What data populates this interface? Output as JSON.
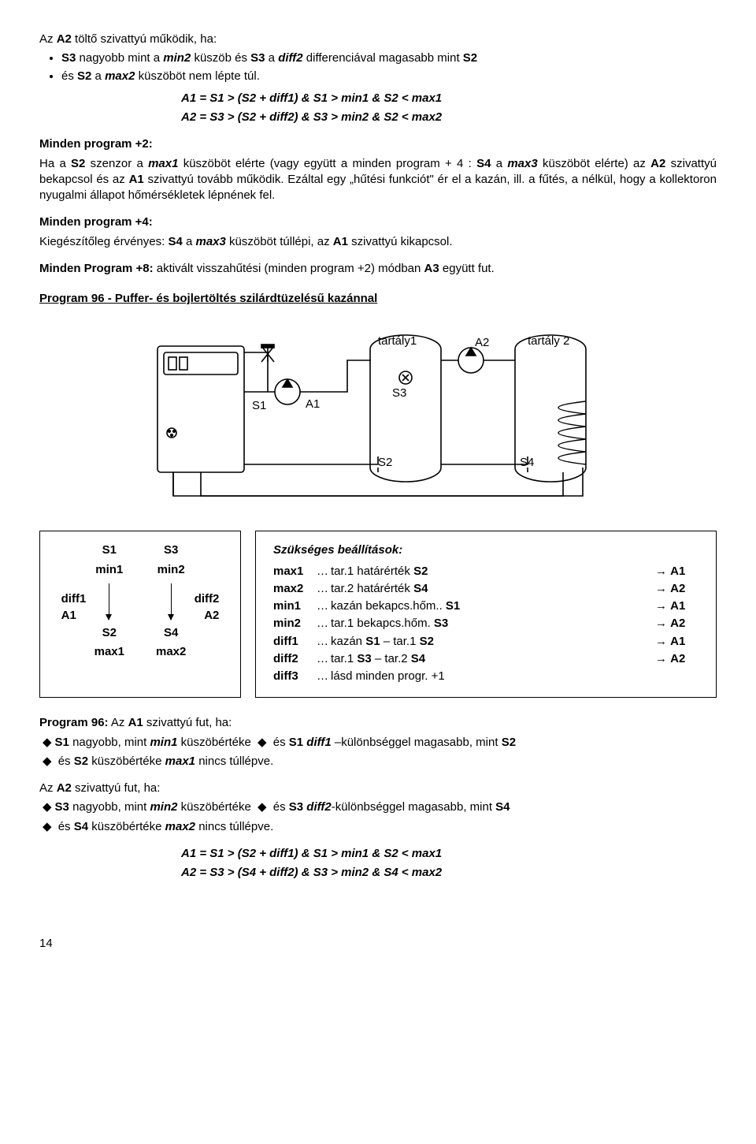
{
  "intro": {
    "l1_a": "Az ",
    "l1_b": "A2",
    "l1_c": " töltő szivattyú működik, ha:",
    "b1_a": "S3",
    "b1_b": " nagyobb mint a ",
    "b1_c": "min2",
    "b1_d": " küszöb és ",
    "b1_e": "S3",
    "b1_f": " a ",
    "b1_g": "diff2",
    "b1_h": " differenciával magasabb mint ",
    "b1_i": "S2",
    "b2_a": "és ",
    "b2_b": "S2",
    "b2_c": " a ",
    "b2_d": "max2",
    "b2_e": " küszöböt nem lépte túl.",
    "eq1": "A1 = S1 > (S2 + diff1) & S1 > min1 & S2 < max1",
    "eq2": "A2 = S3 > (S2 + diff2) & S3 > min2 & S2 < max2"
  },
  "p2": {
    "h": "Minden program +2:",
    "t1": "Ha a ",
    "t2": "S2",
    "t3": " szenzor a ",
    "t4": "max1",
    "t5": " küszöböt elérte (vagy együtt a minden program + 4 : ",
    "t6": "S4",
    "t7": " a ",
    "t8": "max3",
    "t9": " küszöböt elérte) az ",
    "t10": "A2",
    "t11": " szivattyú bekapcsol és az ",
    "t12": "A1",
    "t13": " szivattyú tovább működik. Ezáltal egy „hűtési funkciót\" ér el a kazán, ill. a fűtés, a nélkül, hogy a kollektoron nyugalmi állapot hőmérsékletek lépnének fel."
  },
  "p4": {
    "h": "Minden program +4:",
    "t1": "Kiegészítőleg érvényes: ",
    "t2": "S4",
    "t3": " a ",
    "t4": "max3",
    "t5": " küszöböt túllépi, az ",
    "t6": "A1",
    "t7": " szivattyú kikapcsol."
  },
  "p8": {
    "h": "Minden Program +8:",
    "t1": " aktivált visszahűtési (minden program +2) módban ",
    "t2": "A3",
    "t3": " együtt fut."
  },
  "prog96title": "Program 96 - Puffer- és bojlertöltés szilárdtüzelésű kazánnal",
  "diagram": {
    "tank1": "tartály1",
    "tank2": "tartály 2",
    "S1": "S1",
    "S2": "S2",
    "S3": "S3",
    "S4": "S4",
    "A1": "A1",
    "A2": "A2"
  },
  "leftbox": {
    "c1": {
      "top": "S1",
      "mid_top": "min1",
      "side": "diff1",
      "side2": "A1",
      "bot_top": "S2",
      "bot": "max1"
    },
    "c2": {
      "top": "S3",
      "mid_top": "min2",
      "side": "diff2",
      "side2": "A2",
      "bot_top": "S4",
      "bot": "max2"
    }
  },
  "settings": {
    "heading": "Szükséges beállítások:",
    "rows": [
      {
        "k": "max1",
        "t_a": "tar.1 határérték ",
        "t_b": "S2",
        "a": "A1"
      },
      {
        "k": "max2",
        "t_a": "tar.2 határérték ",
        "t_b": "S4",
        "a": "A2"
      },
      {
        "k": "min1",
        "t_a": "kazán bekapcs.hőm.. ",
        "t_b": "S1",
        "a": "A1"
      },
      {
        "k": "min2",
        "t_a": "tar.1 bekapcs.hőm. ",
        "t_b": "S3",
        "a": "A2"
      },
      {
        "k": "diff1",
        "t_a": "kazán ",
        "t_b": "S1",
        "t_c": " – tar.1 ",
        "t_d": "S2",
        "a": "A1"
      },
      {
        "k": "diff2",
        "t_a": "tar.1 ",
        "t_b": "S3",
        "t_c": " – tar.2 ",
        "t_d": "S4",
        "a": "A2"
      },
      {
        "k": "diff3",
        "t_a": "lásd minden progr. +1",
        "a": ""
      }
    ]
  },
  "p96": {
    "h1_a": "Program 96:",
    "h1_b": " Az ",
    "h1_c": "A1",
    "h1_d": " szivattyú fut, ha:",
    "l1_a": "S1",
    "l1_b": " nagyobb, mint ",
    "l1_c": "min1",
    "l1_d": " küszöbértéke ",
    "l1_e": " és ",
    "l1_f": "S1  ",
    "l1_g": "diff1",
    "l1_h": " –különbséggel magasabb, mint ",
    "l1_i": "S2",
    "l2_a": " és ",
    "l2_b": "S2",
    "l2_c": " küszöbértéke ",
    "l2_d": "max1",
    "l2_e": " nincs túllépve.",
    "h2_a": "Az ",
    "h2_b": "A2",
    "h2_c": " szivattyú fut, ha:",
    "l3_a": "S3",
    "l3_b": " nagyobb, mint ",
    "l3_c": "min2",
    "l3_d": " küszöbértéke ",
    "l3_e": " és ",
    "l3_f": "S3  ",
    "l3_g": "diff2",
    "l3_h": "-különbséggel magasabb, mint ",
    "l3_i": "S4",
    "l4_a": " és ",
    "l4_b": "S4",
    "l4_c": " küszöbértéke ",
    "l4_d": "max2",
    "l4_e": " nincs túllépve.",
    "eq1": "A1 = S1 > (S2 + diff1) & S1 > min1 & S2 < max1",
    "eq2": "A2 = S3 > (S4 + diff2) & S3 > min2 & S4 < max2"
  },
  "pagenum": "14"
}
